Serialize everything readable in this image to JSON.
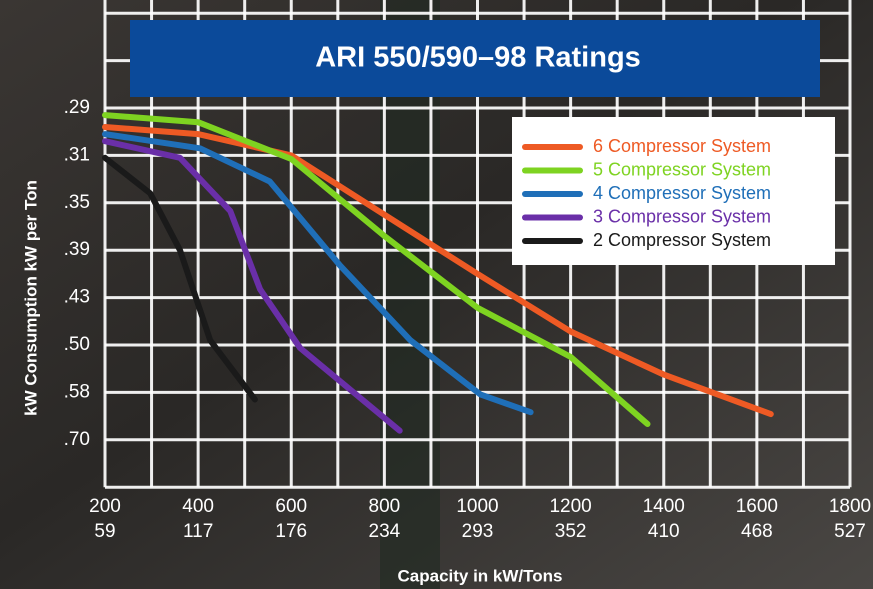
{
  "chart_data": {
    "type": "line",
    "title": "ARI 550/590–98 Ratings",
    "xlabel": "Capacity in kW/Tons",
    "ylabel": "kW Consumption kW per Ton",
    "xlim": [
      200,
      1800
    ],
    "xticks": [
      200,
      400,
      600,
      800,
      1000,
      1200,
      1400,
      1600,
      1800
    ],
    "xticks_tons": [
      59,
      117,
      176,
      234,
      293,
      352,
      410,
      468,
      527
    ],
    "ylim": [
      0.27,
      0.82
    ],
    "yticks": [
      {
        "value": 0.29,
        "label": ".29"
      },
      {
        "value": 0.31,
        "label": ".31"
      },
      {
        "value": 0.35,
        "label": ".35"
      },
      {
        "value": 0.39,
        "label": ".39"
      },
      {
        "value": 0.43,
        "label": ".43"
      },
      {
        "value": 0.5,
        "label": ".50"
      },
      {
        "value": 0.58,
        "label": ".58"
      },
      {
        "value": 0.7,
        "label": ".70"
      }
    ],
    "grid": true,
    "legend": "upper right",
    "series": [
      {
        "name": "6 Compressor System",
        "color": "#ee5a24",
        "x": [
          200,
          400,
          600,
          800,
          1000,
          1200,
          1400,
          1630
        ],
        "values": [
          0.298,
          0.301,
          0.31,
          0.36,
          0.41,
          0.48,
          0.55,
          0.635
        ]
      },
      {
        "name": "5 Compressor System",
        "color": "#7ed321",
        "x": [
          200,
          400,
          600,
          800,
          1000,
          1200,
          1365
        ],
        "values": [
          0.293,
          0.296,
          0.313,
          0.378,
          0.445,
          0.52,
          0.66
        ]
      },
      {
        "name": "4 Compressor System",
        "color": "#1f6fb8",
        "x": [
          200,
          404,
          554,
          705,
          856,
          1006,
          1114
        ],
        "values": [
          0.301,
          0.307,
          0.332,
          0.403,
          0.493,
          0.585,
          0.63
        ]
      },
      {
        "name": "3 Compressor System",
        "color": "#6a2fa8",
        "x": [
          200,
          361,
          469,
          533,
          619,
          833
        ],
        "values": [
          0.304,
          0.312,
          0.357,
          0.423,
          0.505,
          0.677
        ]
      },
      {
        "name": "2 Compressor System",
        "color": "#1a1a1a",
        "x": [
          200,
          297,
          361,
          426,
          522
        ],
        "values": [
          0.312,
          0.342,
          0.39,
          0.493,
          0.598
        ]
      }
    ]
  }
}
